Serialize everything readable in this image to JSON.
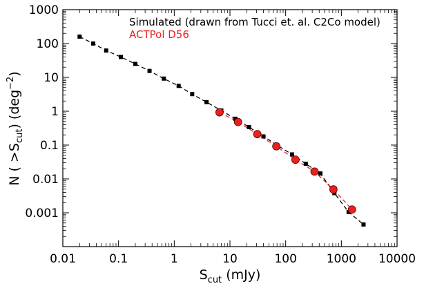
{
  "chart_data": {
    "type": "scatter",
    "title": "",
    "xlabel": {
      "main": "S",
      "sub": "cut",
      "unit": " (mJy)"
    },
    "ylabel": {
      "pre": "N ( >S",
      "sub": "cut",
      "mid": ") (deg",
      "sup": "−2",
      "post": ")"
    },
    "x_scale": "log",
    "y_scale": "log",
    "xlim": [
      0.01,
      10000
    ],
    "ylim": [
      0.0001,
      1000
    ],
    "grid": false,
    "legend_position": "top-right",
    "x_ticks": [
      {
        "value": 0.01,
        "label": "0.01"
      },
      {
        "value": 0.1,
        "label": "0.1"
      },
      {
        "value": 1,
        "label": "1"
      },
      {
        "value": 10,
        "label": "10"
      },
      {
        "value": 100,
        "label": "100"
      },
      {
        "value": 1000,
        "label": "1000"
      },
      {
        "value": 10000,
        "label": "10000"
      }
    ],
    "y_ticks": [
      {
        "value": 0.001,
        "label": "0.001"
      },
      {
        "value": 0.01,
        "label": "0.01"
      },
      {
        "value": 0.1,
        "label": "0.1"
      },
      {
        "value": 1,
        "label": "1"
      },
      {
        "value": 10,
        "label": "10"
      },
      {
        "value": 100,
        "label": "100"
      },
      {
        "value": 1000,
        "label": "1000"
      }
    ],
    "series": [
      {
        "name": "Simulated (drawn from Tucci et. al. C2Co model)",
        "color": "#000000",
        "marker": "square",
        "line": "dashed",
        "points": [
          [
            0.02,
            160
          ],
          [
            0.035,
            100
          ],
          [
            0.06,
            62
          ],
          [
            0.11,
            40
          ],
          [
            0.2,
            25
          ],
          [
            0.36,
            15.5
          ],
          [
            0.65,
            9.2
          ],
          [
            1.2,
            5.6
          ],
          [
            2.1,
            3.2
          ],
          [
            3.8,
            1.85
          ],
          [
            7.0,
            1.05
          ],
          [
            12.5,
            0.6
          ],
          [
            22,
            0.34
          ],
          [
            40,
            0.18
          ],
          [
            70,
            0.1
          ],
          [
            130,
            0.053
          ],
          [
            230,
            0.028
          ],
          [
            420,
            0.0145
          ],
          [
            750,
            0.0038
          ],
          [
            1350,
            0.00105
          ],
          [
            2500,
            0.00045
          ]
        ]
      },
      {
        "name": "ACTPol D56",
        "color": "#e8211f",
        "marker": "circle",
        "line": "dashed",
        "points": [
          [
            6.5,
            0.93
          ],
          [
            14,
            0.48
          ],
          [
            31,
            0.21
          ],
          [
            68,
            0.092
          ],
          [
            150,
            0.037
          ],
          [
            330,
            0.0165
          ],
          [
            720,
            0.0049
          ],
          [
            1550,
            0.00125
          ]
        ]
      }
    ]
  }
}
